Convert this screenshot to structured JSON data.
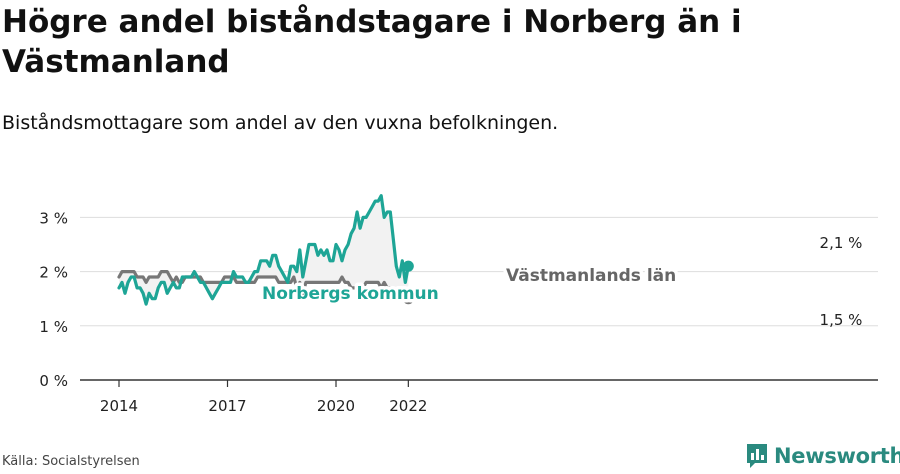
{
  "title": "Högre andel biståndstagare i Norberg än i Västmanland",
  "subtitle": "Biståndsmottagare som andel av den vuxna befolkningen.",
  "source": "Källa: Socialstyrelsen",
  "brand": "Newsworthy",
  "colors": {
    "norberg": "#1ea596",
    "vastmanland": "#777777",
    "band": "#f2f2f2",
    "grid": "#dddddd",
    "axis": "#333333"
  },
  "chart_data": {
    "type": "line",
    "title": "Högre andel biståndstagare i Norberg än i Västmanland",
    "subtitle": "Biståndsmottagare som andel av den vuxna befolkningen.",
    "ylim": [
      0,
      3
    ],
    "y_ticks": [
      "0 %",
      "1 %",
      "2 %",
      "3 %"
    ],
    "y_tick_values": [
      0,
      1,
      2,
      3
    ],
    "x_ticks": [
      "2014",
      "2017",
      "2020",
      "2022"
    ],
    "x_tick_values": [
      "2014-01",
      "2017-01",
      "2020-01",
      "2022-01"
    ],
    "grid": true,
    "series": [
      {
        "name": "Norbergs kommun",
        "color": "#1ea596",
        "end_label": "2,1 %",
        "points": [
          [
            "2014-01",
            1.7
          ],
          [
            "2014-02",
            1.8
          ],
          [
            "2014-03",
            1.6
          ],
          [
            "2014-04",
            1.8
          ],
          [
            "2014-05",
            1.9
          ],
          [
            "2014-06",
            1.9
          ],
          [
            "2014-07",
            1.7
          ],
          [
            "2014-08",
            1.7
          ],
          [
            "2014-09",
            1.6
          ],
          [
            "2014-10",
            1.4
          ],
          [
            "2014-11",
            1.6
          ],
          [
            "2014-12",
            1.5
          ],
          [
            "2015-01",
            1.5
          ],
          [
            "2015-02",
            1.7
          ],
          [
            "2015-03",
            1.8
          ],
          [
            "2015-04",
            1.8
          ],
          [
            "2015-05",
            1.6
          ],
          [
            "2015-06",
            1.7
          ],
          [
            "2015-07",
            1.8
          ],
          [
            "2015-08",
            1.7
          ],
          [
            "2015-09",
            1.7
          ],
          [
            "2015-10",
            1.9
          ],
          [
            "2015-11",
            1.9
          ],
          [
            "2015-12",
            1.9
          ],
          [
            "2016-01",
            1.9
          ],
          [
            "2016-02",
            2.0
          ],
          [
            "2016-03",
            1.9
          ],
          [
            "2016-04",
            1.8
          ],
          [
            "2016-05",
            1.8
          ],
          [
            "2016-06",
            1.7
          ],
          [
            "2016-07",
            1.6
          ],
          [
            "2016-08",
            1.5
          ],
          [
            "2016-09",
            1.6
          ],
          [
            "2016-10",
            1.7
          ],
          [
            "2016-11",
            1.8
          ],
          [
            "2016-12",
            1.8
          ],
          [
            "2017-01",
            1.8
          ],
          [
            "2017-02",
            1.8
          ],
          [
            "2017-03",
            2.0
          ],
          [
            "2017-04",
            1.9
          ],
          [
            "2017-05",
            1.9
          ],
          [
            "2017-06",
            1.9
          ],
          [
            "2017-07",
            1.8
          ],
          [
            "2017-08",
            1.8
          ],
          [
            "2017-09",
            1.9
          ],
          [
            "2017-10",
            2.0
          ],
          [
            "2017-11",
            2.0
          ],
          [
            "2017-12",
            2.2
          ],
          [
            "2018-01",
            2.2
          ],
          [
            "2018-02",
            2.2
          ],
          [
            "2018-03",
            2.1
          ],
          [
            "2018-04",
            2.3
          ],
          [
            "2018-05",
            2.3
          ],
          [
            "2018-06",
            2.1
          ],
          [
            "2018-07",
            2.0
          ],
          [
            "2018-08",
            1.9
          ],
          [
            "2018-09",
            1.8
          ],
          [
            "2018-10",
            2.1
          ],
          [
            "2018-11",
            2.1
          ],
          [
            "2018-12",
            2.0
          ],
          [
            "2019-01",
            2.4
          ],
          [
            "2019-02",
            1.9
          ],
          [
            "2019-03",
            2.2
          ],
          [
            "2019-04",
            2.5
          ],
          [
            "2019-05",
            2.5
          ],
          [
            "2019-06",
            2.5
          ],
          [
            "2019-07",
            2.3
          ],
          [
            "2019-08",
            2.4
          ],
          [
            "2019-09",
            2.3
          ],
          [
            "2019-10",
            2.4
          ],
          [
            "2019-11",
            2.2
          ],
          [
            "2019-12",
            2.2
          ],
          [
            "2020-01",
            2.5
          ],
          [
            "2020-02",
            2.4
          ],
          [
            "2020-03",
            2.2
          ],
          [
            "2020-04",
            2.4
          ],
          [
            "2020-05",
            2.5
          ],
          [
            "2020-06",
            2.7
          ],
          [
            "2020-07",
            2.8
          ],
          [
            "2020-08",
            3.1
          ],
          [
            "2020-09",
            2.8
          ],
          [
            "2020-10",
            3.0
          ],
          [
            "2020-11",
            3.0
          ],
          [
            "2020-12",
            3.1
          ],
          [
            "2021-01",
            3.2
          ],
          [
            "2021-02",
            3.3
          ],
          [
            "2021-03",
            3.3
          ],
          [
            "2021-04",
            3.4
          ],
          [
            "2021-05",
            3.0
          ],
          [
            "2021-06",
            3.1
          ],
          [
            "2021-07",
            3.1
          ],
          [
            "2021-08",
            2.6
          ],
          [
            "2021-09",
            2.1
          ],
          [
            "2021-10",
            1.9
          ],
          [
            "2021-11",
            2.2
          ],
          [
            "2021-12",
            1.8
          ],
          [
            "2022-01",
            2.1
          ]
        ]
      },
      {
        "name": "Västmanlands län",
        "color": "#777777",
        "end_label": "1,5 %",
        "points": [
          [
            "2014-01",
            1.9
          ],
          [
            "2014-02",
            2.0
          ],
          [
            "2014-03",
            2.0
          ],
          [
            "2014-04",
            2.0
          ],
          [
            "2014-05",
            2.0
          ],
          [
            "2014-06",
            2.0
          ],
          [
            "2014-07",
            1.9
          ],
          [
            "2014-08",
            1.9
          ],
          [
            "2014-09",
            1.9
          ],
          [
            "2014-10",
            1.8
          ],
          [
            "2014-11",
            1.9
          ],
          [
            "2014-12",
            1.9
          ],
          [
            "2015-01",
            1.9
          ],
          [
            "2015-02",
            1.9
          ],
          [
            "2015-03",
            2.0
          ],
          [
            "2015-04",
            2.0
          ],
          [
            "2015-05",
            2.0
          ],
          [
            "2015-06",
            1.9
          ],
          [
            "2015-07",
            1.8
          ],
          [
            "2015-08",
            1.9
          ],
          [
            "2015-09",
            1.8
          ],
          [
            "2015-10",
            1.8
          ],
          [
            "2015-11",
            1.9
          ],
          [
            "2015-12",
            1.9
          ],
          [
            "2016-01",
            1.9
          ],
          [
            "2016-02",
            1.9
          ],
          [
            "2016-03",
            1.9
          ],
          [
            "2016-04",
            1.9
          ],
          [
            "2016-05",
            1.8
          ],
          [
            "2016-06",
            1.8
          ],
          [
            "2016-07",
            1.8
          ],
          [
            "2016-08",
            1.8
          ],
          [
            "2016-09",
            1.8
          ],
          [
            "2016-10",
            1.8
          ],
          [
            "2016-11",
            1.8
          ],
          [
            "2016-12",
            1.9
          ],
          [
            "2017-01",
            1.9
          ],
          [
            "2017-02",
            1.9
          ],
          [
            "2017-03",
            1.9
          ],
          [
            "2017-04",
            1.8
          ],
          [
            "2017-05",
            1.8
          ],
          [
            "2017-06",
            1.8
          ],
          [
            "2017-07",
            1.8
          ],
          [
            "2017-08",
            1.8
          ],
          [
            "2017-09",
            1.8
          ],
          [
            "2017-10",
            1.8
          ],
          [
            "2017-11",
            1.9
          ],
          [
            "2017-12",
            1.9
          ],
          [
            "2018-01",
            1.9
          ],
          [
            "2018-02",
            1.9
          ],
          [
            "2018-03",
            1.9
          ],
          [
            "2018-04",
            1.9
          ],
          [
            "2018-05",
            1.9
          ],
          [
            "2018-06",
            1.8
          ],
          [
            "2018-07",
            1.8
          ],
          [
            "2018-08",
            1.8
          ],
          [
            "2018-09",
            1.8
          ],
          [
            "2018-10",
            1.8
          ],
          [
            "2018-11",
            1.9
          ],
          [
            "2018-12",
            1.7
          ],
          [
            "2019-01",
            1.8
          ],
          [
            "2019-02",
            1.6
          ],
          [
            "2019-03",
            1.8
          ],
          [
            "2019-04",
            1.8
          ],
          [
            "2019-05",
            1.8
          ],
          [
            "2019-06",
            1.8
          ],
          [
            "2019-07",
            1.8
          ],
          [
            "2019-08",
            1.8
          ],
          [
            "2019-09",
            1.8
          ],
          [
            "2019-10",
            1.8
          ],
          [
            "2019-11",
            1.8
          ],
          [
            "2019-12",
            1.8
          ],
          [
            "2020-01",
            1.8
          ],
          [
            "2020-02",
            1.8
          ],
          [
            "2020-03",
            1.9
          ],
          [
            "2020-04",
            1.8
          ],
          [
            "2020-05",
            1.8
          ],
          [
            "2020-06",
            1.7
          ],
          [
            "2020-07",
            1.7
          ],
          [
            "2020-08",
            1.7
          ],
          [
            "2020-09",
            1.7
          ],
          [
            "2020-10",
            1.7
          ],
          [
            "2020-11",
            1.8
          ],
          [
            "2020-12",
            1.8
          ],
          [
            "2021-01",
            1.8
          ],
          [
            "2021-02",
            1.8
          ],
          [
            "2021-03",
            1.8
          ],
          [
            "2021-04",
            1.7
          ],
          [
            "2021-05",
            1.8
          ],
          [
            "2021-06",
            1.7
          ],
          [
            "2021-07",
            1.7
          ],
          [
            "2021-08",
            1.6
          ],
          [
            "2021-09",
            1.6
          ],
          [
            "2021-10",
            1.5
          ],
          [
            "2021-11",
            1.5
          ],
          [
            "2021-12",
            1.5
          ],
          [
            "2022-01",
            1.5
          ]
        ]
      }
    ]
  }
}
